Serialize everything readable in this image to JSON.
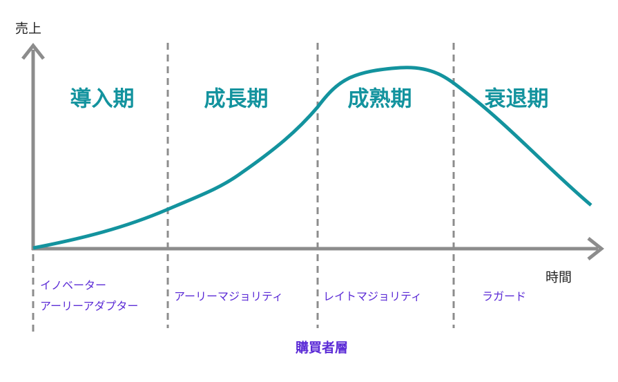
{
  "axes": {
    "y_label": "売上",
    "x_label": "時間"
  },
  "stages": [
    "導入期",
    "成長期",
    "成熟期",
    "衰退期"
  ],
  "buyer_groups": [
    {
      "lines": [
        "イノベーター",
        "アーリーアダプター"
      ]
    },
    {
      "lines": [
        "アーリーマジョリティ"
      ]
    },
    {
      "lines": [
        "レイトマジョリティ"
      ]
    },
    {
      "lines": [
        "ラガード"
      ]
    }
  ],
  "footer": "購買者層"
}
